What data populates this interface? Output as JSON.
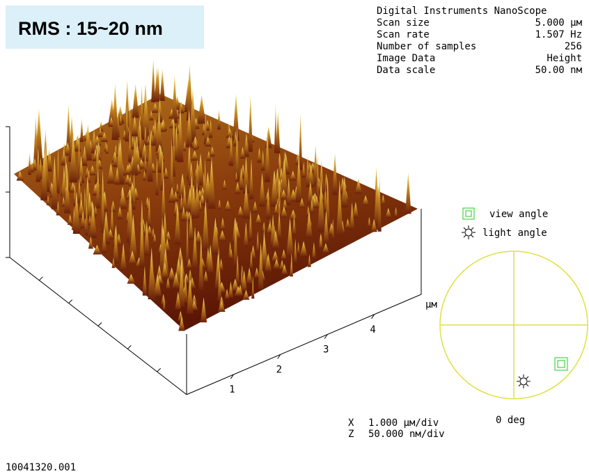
{
  "badge": "RMS : 15~20 nm",
  "info": {
    "title": "Digital Instruments NanoScope",
    "rows": [
      [
        "Scan size",
        "5.000 µм"
      ],
      [
        "Scan rate",
        "1.507 Hz"
      ],
      [
        "Number of samples",
        "256"
      ],
      [
        "Image Data",
        "Height"
      ],
      [
        "Data scale",
        "50.00 nм"
      ]
    ]
  },
  "axis": {
    "ticks": [
      "1",
      "2",
      "3",
      "4"
    ],
    "unit": "µм"
  },
  "angles": {
    "view": "view angle",
    "light": "light angle",
    "degree": "0 deg"
  },
  "scale": [
    [
      "X",
      "1.000 µм/div"
    ],
    [
      "Z",
      "50.000 nм/div"
    ]
  ],
  "filename": "10041320.001"
}
